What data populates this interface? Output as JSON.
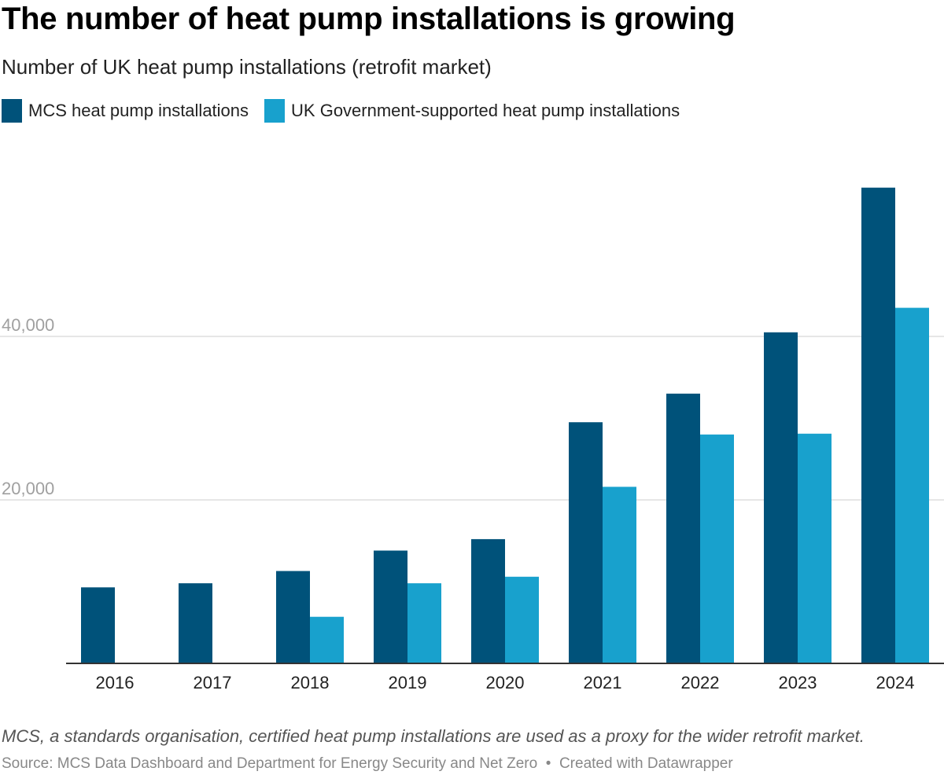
{
  "title": "The number of heat pump installations is growing",
  "subtitle": "Number of UK heat pump installations (retrofit market)",
  "note": "MCS, a standards organisation, certified heat pump installations are used as a proxy for the wider retrofit market.",
  "source": "Source: MCS Data Dashboard and Department for Energy Security and Net Zero",
  "credit": "Created with Datawrapper",
  "colors": {
    "mcs": "#00527a",
    "gov": "#18a1cd",
    "grid": "#dddddd",
    "axis": "#333333"
  },
  "chart_data": {
    "type": "bar",
    "categories": [
      "2016",
      "2017",
      "2018",
      "2019",
      "2020",
      "2021",
      "2022",
      "2023",
      "2024"
    ],
    "series": [
      {
        "name": "MCS heat pump installations",
        "values": [
          9300,
          9800,
          11300,
          13800,
          15200,
          29500,
          33000,
          40500,
          58200
        ]
      },
      {
        "name": "UK Government-supported heat pump installations",
        "values": [
          null,
          null,
          5700,
          9800,
          10600,
          21600,
          28000,
          28100,
          43500
        ]
      }
    ],
    "yticks": [
      20000,
      40000
    ],
    "ytick_labels": [
      "20,000",
      "40,000"
    ],
    "ylim": [
      0,
      60000
    ],
    "grid": true,
    "legend": "top-left"
  }
}
